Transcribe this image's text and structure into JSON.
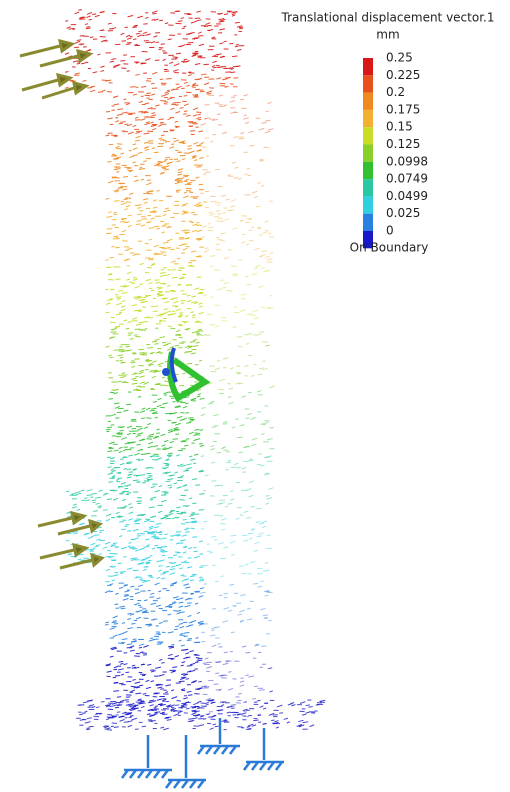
{
  "legend": {
    "title": "Translational displacement vector.1",
    "unit": "mm",
    "levels": [
      {
        "label": "0.25",
        "color": "#d81818"
      },
      {
        "label": "0.225",
        "color": "#e8501c"
      },
      {
        "label": "0.2",
        "color": "#f08a20"
      },
      {
        "label": "0.175",
        "color": "#f4b030"
      },
      {
        "label": "0.15",
        "color": "#c8dc28"
      },
      {
        "label": "0.125",
        "color": "#8ad028"
      },
      {
        "label": "0.0998",
        "color": "#30c030"
      },
      {
        "label": "0.0749",
        "color": "#28c8a0"
      },
      {
        "label": "0.0499",
        "color": "#30d0e0"
      },
      {
        "label": "0.025",
        "color": "#2880e0"
      },
      {
        "label": "0",
        "color": "#1818c8"
      }
    ],
    "footer": "On Boundary"
  }
}
